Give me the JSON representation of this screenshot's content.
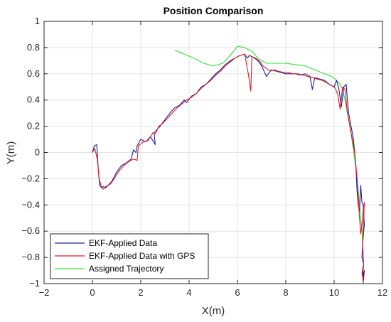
{
  "chart_data": {
    "type": "line",
    "title": "Position Comparison",
    "xlabel": "X(m)",
    "ylabel": "Y(m)",
    "xlim": [
      -2,
      12
    ],
    "ylim": [
      -1,
      1
    ],
    "xticks": [
      -2,
      0,
      2,
      4,
      6,
      8,
      10,
      12
    ],
    "yticks": [
      -1,
      -0.8,
      -0.6,
      -0.4,
      -0.2,
      0,
      0.2,
      0.4,
      0.6,
      0.8,
      1
    ],
    "xtick_labels": [
      "−2",
      "0",
      "2",
      "4",
      "6",
      "8",
      "10",
      "12"
    ],
    "ytick_labels": [
      "−1",
      "−0.8",
      "−0.6",
      "−0.4",
      "−0.2",
      "0",
      "0.2",
      "0.4",
      "0.6",
      "0.8",
      "1"
    ],
    "grid": true,
    "legend_position": "bottom-left",
    "series": [
      {
        "name": "EKF-Applied Data",
        "color": "#1f1f9e",
        "x": [
          0.0,
          0.08,
          0.18,
          0.25,
          0.3,
          0.38,
          0.45,
          0.55,
          0.65,
          0.8,
          1.0,
          1.2,
          1.4,
          1.6,
          1.7,
          1.8,
          1.85,
          2.0,
          2.2,
          2.4,
          2.6,
          2.55,
          2.7,
          2.8,
          3.0,
          3.2,
          3.4,
          3.6,
          3.8,
          3.9,
          4.1,
          4.3,
          4.5,
          4.7,
          4.9,
          5.1,
          5.3,
          5.5,
          5.7,
          5.9,
          6.1,
          6.3,
          6.4,
          6.5,
          6.6,
          6.7,
          6.85,
          7.0,
          7.1,
          7.2,
          7.4,
          7.6,
          7.8,
          8.0,
          8.2,
          8.4,
          8.6,
          8.8,
          9.0,
          9.1,
          9.2,
          9.4,
          9.6,
          9.8,
          10.0,
          10.1,
          10.2,
          10.3,
          10.4,
          10.5,
          10.55,
          10.6,
          10.7,
          10.8,
          10.85,
          10.9,
          10.95,
          11.0,
          11.05,
          11.1,
          11.15,
          11.2,
          11.25,
          11.2,
          11.15,
          11.22,
          11.18,
          11.25,
          11.2
        ],
        "y": [
          0.0,
          0.05,
          0.06,
          -0.15,
          -0.25,
          -0.27,
          -0.26,
          -0.27,
          -0.25,
          -0.22,
          -0.15,
          -0.1,
          -0.08,
          -0.05,
          0.02,
          0.0,
          0.05,
          0.1,
          0.08,
          0.12,
          0.06,
          0.15,
          0.18,
          0.2,
          0.25,
          0.3,
          0.34,
          0.36,
          0.4,
          0.38,
          0.43,
          0.45,
          0.5,
          0.52,
          0.56,
          0.6,
          0.63,
          0.67,
          0.7,
          0.72,
          0.74,
          0.75,
          0.72,
          0.74,
          0.73,
          0.72,
          0.7,
          0.66,
          0.62,
          0.58,
          0.63,
          0.62,
          0.61,
          0.6,
          0.6,
          0.6,
          0.59,
          0.6,
          0.58,
          0.48,
          0.57,
          0.56,
          0.55,
          0.52,
          0.5,
          0.55,
          0.48,
          0.35,
          0.5,
          0.52,
          0.4,
          0.3,
          0.2,
          0.1,
          0.0,
          -0.1,
          -0.3,
          -0.4,
          -0.45,
          -0.25,
          -0.38,
          -0.4,
          -0.55,
          -0.65,
          -0.8,
          -0.85,
          -0.95,
          -0.9,
          -1.0
        ]
      },
      {
        "name": "EKF-Applied Data with GPS",
        "color": "#e0191e",
        "x": [
          0.0,
          0.1,
          0.2,
          0.28,
          0.35,
          0.45,
          0.55,
          0.65,
          0.75,
          0.9,
          1.1,
          1.3,
          1.5,
          1.7,
          1.85,
          1.9,
          2.1,
          2.3,
          2.5,
          2.6,
          2.75,
          2.9,
          3.1,
          3.3,
          3.5,
          3.7,
          3.9,
          4.1,
          4.3,
          4.5,
          4.7,
          4.9,
          5.1,
          5.3,
          5.5,
          5.7,
          5.9,
          6.1,
          6.3,
          6.45,
          6.55,
          6.6,
          6.75,
          6.9,
          7.05,
          7.2,
          7.35,
          7.5,
          7.7,
          7.9,
          8.1,
          8.3,
          8.5,
          8.7,
          8.9,
          9.1,
          9.3,
          9.5,
          9.7,
          9.9,
          10.05,
          10.15,
          10.25,
          10.35,
          10.45,
          10.55,
          10.65,
          10.75,
          10.85,
          10.95,
          11.0,
          11.05,
          11.1,
          11.15,
          11.2,
          11.25,
          11.18,
          11.22,
          11.15,
          11.2
        ],
        "y": [
          0.0,
          0.03,
          -0.05,
          -0.2,
          -0.25,
          -0.28,
          -0.26,
          -0.25,
          -0.24,
          -0.2,
          -0.14,
          -0.1,
          -0.07,
          -0.05,
          -0.06,
          0.05,
          0.08,
          0.09,
          0.15,
          0.14,
          0.2,
          0.22,
          0.26,
          0.3,
          0.34,
          0.37,
          0.4,
          0.42,
          0.45,
          0.49,
          0.52,
          0.55,
          0.59,
          0.62,
          0.66,
          0.69,
          0.72,
          0.74,
          0.75,
          0.6,
          0.47,
          0.73,
          0.72,
          0.7,
          0.66,
          0.64,
          0.62,
          0.63,
          0.62,
          0.61,
          0.61,
          0.6,
          0.6,
          0.59,
          0.58,
          0.57,
          0.56,
          0.55,
          0.53,
          0.51,
          0.49,
          0.44,
          0.33,
          0.5,
          0.48,
          0.3,
          0.2,
          0.1,
          0.0,
          -0.2,
          -0.35,
          -0.5,
          -0.62,
          -0.55,
          -0.45,
          -0.38,
          -0.7,
          -0.85,
          -0.92,
          -0.98
        ]
      },
      {
        "name": "Assigned Trajectory",
        "color": "#3ddc3d",
        "x": [
          3.4,
          3.8,
          4.2,
          4.6,
          5.0,
          5.4,
          5.7,
          6.0,
          6.3,
          6.6,
          6.9,
          7.2,
          7.6,
          8.0,
          8.4,
          8.8,
          9.2,
          9.6,
          9.9,
          10.1,
          10.25,
          10.35,
          10.45,
          10.55,
          10.65,
          10.75,
          10.85,
          10.95,
          11.05,
          11.15,
          11.2
        ],
        "y": [
          0.78,
          0.75,
          0.72,
          0.68,
          0.66,
          0.68,
          0.74,
          0.81,
          0.8,
          0.77,
          0.71,
          0.68,
          0.68,
          0.68,
          0.67,
          0.66,
          0.63,
          0.6,
          0.58,
          0.55,
          0.52,
          0.48,
          0.4,
          0.3,
          0.2,
          0.08,
          -0.05,
          -0.2,
          -0.4,
          -0.6,
          -0.75
        ]
      }
    ]
  }
}
